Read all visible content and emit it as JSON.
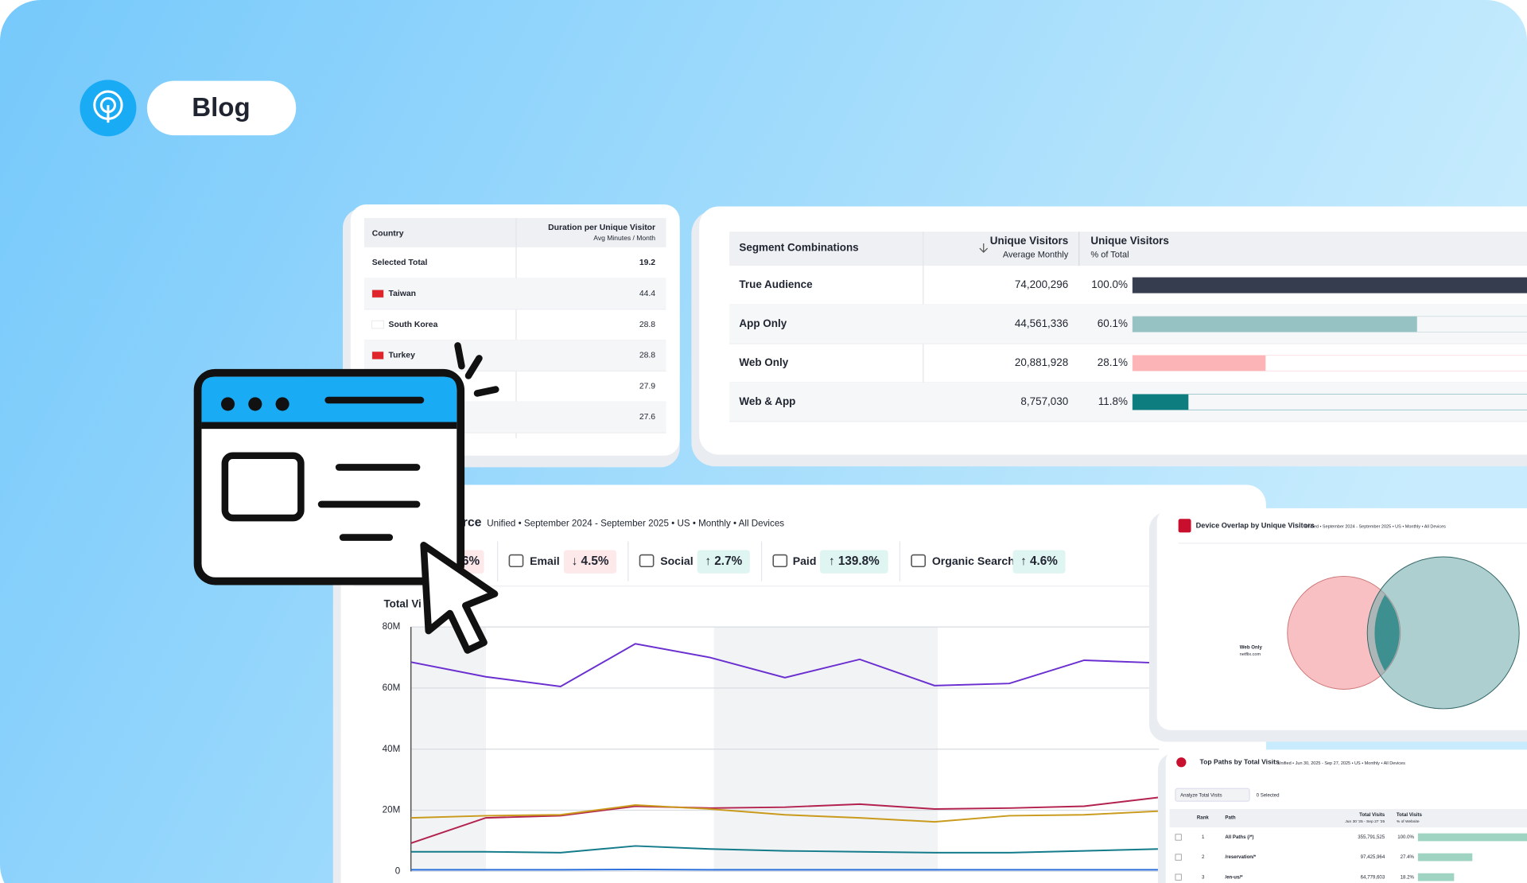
{
  "badge": "Blog",
  "country_table": {
    "headers": [
      "Country",
      "Duration per Unique Visitor",
      "Avg Minutes / Month"
    ],
    "rows": [
      {
        "name": "Selected Total",
        "value": "19.2"
      },
      {
        "name": "Taiwan",
        "value": "44.4"
      },
      {
        "name": "South Korea",
        "value": "28.8"
      },
      {
        "name": "Turkey",
        "value": "28.8"
      },
      {
        "value": "27.9"
      },
      {
        "value": "27.6"
      }
    ]
  },
  "segments": {
    "headers": [
      "Segment Combinations",
      "Unique Visitors",
      "Average Monthly",
      "Unique Visitors",
      "% of Total"
    ],
    "names": [
      "True Audience",
      "App Only",
      "Web Only",
      "Web & App"
    ],
    "visitors": [
      "74,200,296",
      "44,561,336",
      "20,881,928",
      "8,757,030"
    ],
    "values": [
      100.0,
      60.1,
      28.1,
      11.8
    ],
    "value_labels": [
      "100.0%",
      "60.1%",
      "28.1%",
      "11.8%"
    ],
    "colors": [
      "#353d4f",
      "#96c2c3",
      "#fdb4b7",
      "#0e7d7f"
    ]
  },
  "traffic": {
    "title": "rce",
    "subtitle": "Unified • September 2024 - September 2025 • US • Monthly • All Devices",
    "channels": [
      {
        "change": "6%",
        "trend": "down"
      },
      {
        "name": "Email",
        "change": "↓ 4.5%",
        "trend": "down"
      },
      {
        "name": "Social",
        "change": "↑ 2.7%",
        "trend": "up"
      },
      {
        "name": "Paid",
        "change": "↑ 139.8%",
        "trend": "up"
      },
      {
        "name": "Organic Search",
        "change": "↑ 4.6%",
        "trend": "up"
      }
    ],
    "chart": {
      "title": "Total Vi",
      "ylim": [
        0,
        80
      ],
      "yticks": [
        0,
        {
          "value": 20,
          "label": "20M"
        },
        {
          "value": 40,
          "label": "40M"
        },
        {
          "value": 60,
          "label": "60M"
        },
        {
          "value": 80,
          "label": "80M"
        }
      ],
      "series": [
        {
          "color": "#6a2fd0",
          "values": [
            68.5,
            63.7,
            60.5,
            74.5,
            70,
            63.4,
            69.4,
            60.8,
            61.5,
            69.1,
            68.2
          ]
        },
        {
          "color": "#b3224f",
          "values": [
            9.2,
            17.5,
            18.2,
            21.3,
            20.7,
            21,
            22,
            20.4,
            20.7,
            21.3,
            24.2
          ]
        },
        {
          "color": "#c99a1c",
          "values": [
            17.5,
            18.2,
            18.5,
            21.7,
            20.4,
            18.5,
            17.5,
            16.2,
            18.2,
            18.5,
            19.7
          ]
        },
        {
          "color": "#137b8a",
          "values": [
            6.4,
            6.4,
            6.1,
            8.3,
            7.3,
            6.7,
            6.4,
            6.1,
            6.1,
            6.7,
            7.3
          ]
        },
        {
          "color": "#2a6fdb",
          "values": [
            0.5,
            0.5,
            0.5,
            0.6,
            0.5,
            0.5,
            0.5,
            0.5,
            0.5,
            0.5,
            0.5
          ]
        }
      ]
    }
  },
  "venn": {
    "title": "Device Overlap by Unique Visitors",
    "subtitle": "Unified • September 2024 - September 2025 • US • Monthly • All Devices",
    "label": "Web Only",
    "sublabel": "netflix.com"
  },
  "paths": {
    "title": "Top Paths by Total Visits",
    "subtitle": "Unified • Jun 30, 2025 - Sep 27, 2025 • US • Monthly • All Devices",
    "button": "Analyze Total Visits",
    "selected": "0 Selected",
    "headers": [
      "Rank",
      "Path",
      "Total Visits",
      "Jun 30 '25 - Sep 27 '25",
      "Total Visits",
      "% of Website"
    ],
    "ranks": [
      "1",
      "2",
      "3"
    ],
    "names": [
      "All Paths (/*)",
      "/reservation/*",
      "/en-us/*"
    ],
    "visits": [
      "355,791,525",
      "97,425,964",
      "64,779,603"
    ],
    "values": [
      100.0,
      27.4,
      18.2
    ],
    "value_labels": [
      "100.0%",
      "27.4%",
      "18.2%"
    ]
  }
}
